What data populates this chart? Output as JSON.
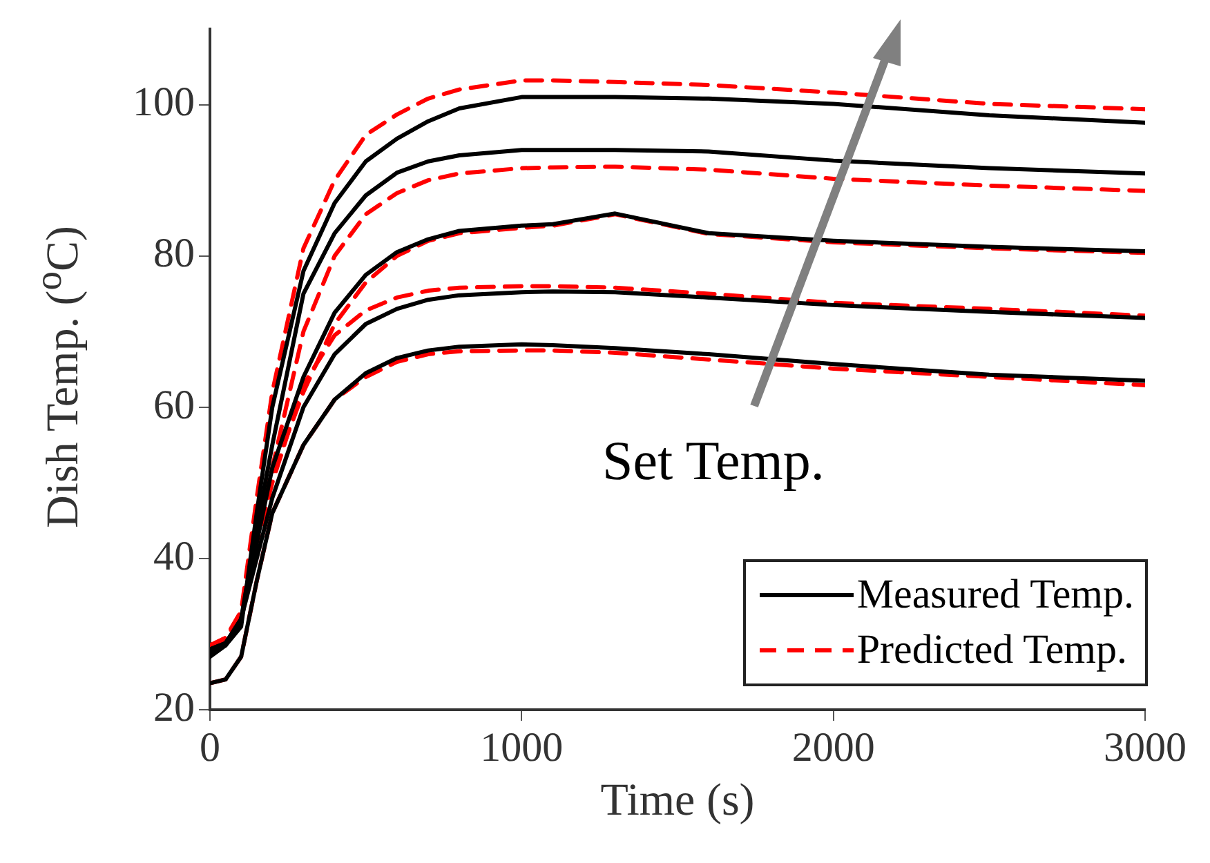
{
  "chart_data": {
    "type": "line",
    "xlabel": "Time (s)",
    "ylabel": "Dish Temp. ($^{o}$C)",
    "x": [
      0,
      50,
      100,
      150,
      200,
      300,
      400,
      500,
      600,
      700,
      800,
      1000,
      1100,
      1300,
      1600,
      2000,
      2500,
      3000
    ],
    "xlim": [
      0,
      3000
    ],
    "xticks": [
      0,
      1000,
      2000,
      3000
    ],
    "ylim": [
      20,
      110
    ],
    "yticks": [
      20,
      40,
      60,
      80,
      100
    ],
    "grid": false,
    "legend": "bottom right",
    "marker": "none",
    "annotations": [
      "Set Temp."
    ],
    "series": [
      {
        "name": "Measured Temp.",
        "color": "#000000",
        "line_style": "solid",
        "values": [
          27,
          28.5,
          31,
          46,
          60,
          78,
          87,
          92.5,
          95.5,
          97.8,
          99.5,
          101,
          101,
          101,
          100.8,
          100.1,
          98.6,
          97.6
        ]
      },
      {
        "color": "#000000",
        "line_style": "solid",
        "values": [
          27.5,
          28.5,
          32,
          44,
          55,
          75,
          83,
          88,
          91,
          92.5,
          93.3,
          94,
          94,
          94,
          93.8,
          92.6,
          91.6,
          90.9
        ]
      },
      {
        "color": "#000000",
        "line_style": "solid",
        "values": [
          28,
          28.8,
          32,
          42,
          52,
          64,
          72.5,
          77.5,
          80.5,
          82.2,
          83.3,
          84,
          84.2,
          85.6,
          83,
          82,
          81.2,
          80.6
        ]
      },
      {
        "color": "#000000",
        "line_style": "solid",
        "values": [
          28,
          28.8,
          32,
          40,
          48,
          60,
          67,
          71,
          73,
          74.2,
          74.8,
          75.2,
          75.3,
          75.2,
          74.5,
          73.5,
          72.6,
          71.8
        ]
      },
      {
        "color": "#000000",
        "line_style": "solid",
        "values": [
          23.5,
          24,
          27,
          37,
          46,
          55,
          61,
          64.5,
          66.5,
          67.5,
          68,
          68.3,
          68.2,
          67.8,
          67,
          65.7,
          64.3,
          63.5
        ]
      },
      {
        "name": "Predicted Temp.",
        "color": "#ff0000",
        "line_style": "dashed",
        "values": [
          28.5,
          29.5,
          33,
          48,
          62,
          81,
          90,
          96,
          98.7,
          100.8,
          102,
          103.2,
          103.2,
          103,
          102.6,
          101.6,
          100.1,
          99.4
        ]
      },
      {
        "color": "#ff0000",
        "line_style": "dashed",
        "values": [
          28.5,
          29.5,
          33,
          45,
          52,
          70,
          80,
          85.5,
          88.3,
          90,
          90.9,
          91.6,
          91.7,
          91.8,
          91.4,
          90.2,
          89.3,
          88.6
        ]
      },
      {
        "color": "#ff0000",
        "line_style": "dashed",
        "values": [
          28.5,
          29.3,
          32.5,
          43,
          51,
          62,
          71,
          76.5,
          80,
          82,
          83,
          83.7,
          84,
          85.5,
          82.9,
          81.8,
          81,
          80.4
        ]
      },
      {
        "color": "#ff0000",
        "line_style": "dashed",
        "values": [
          28.5,
          29.3,
          33,
          42,
          50,
          63,
          69.5,
          72.8,
          74.5,
          75.4,
          75.8,
          76,
          76,
          75.8,
          75,
          73.8,
          73,
          72.1
        ]
      },
      {
        "color": "#ff0000",
        "line_style": "dashed",
        "values": [
          23.5,
          24,
          27,
          37,
          46,
          55,
          61,
          64,
          66,
          67,
          67.4,
          67.5,
          67.5,
          67.2,
          66.3,
          65.1,
          64,
          62.9
        ]
      }
    ]
  }
}
